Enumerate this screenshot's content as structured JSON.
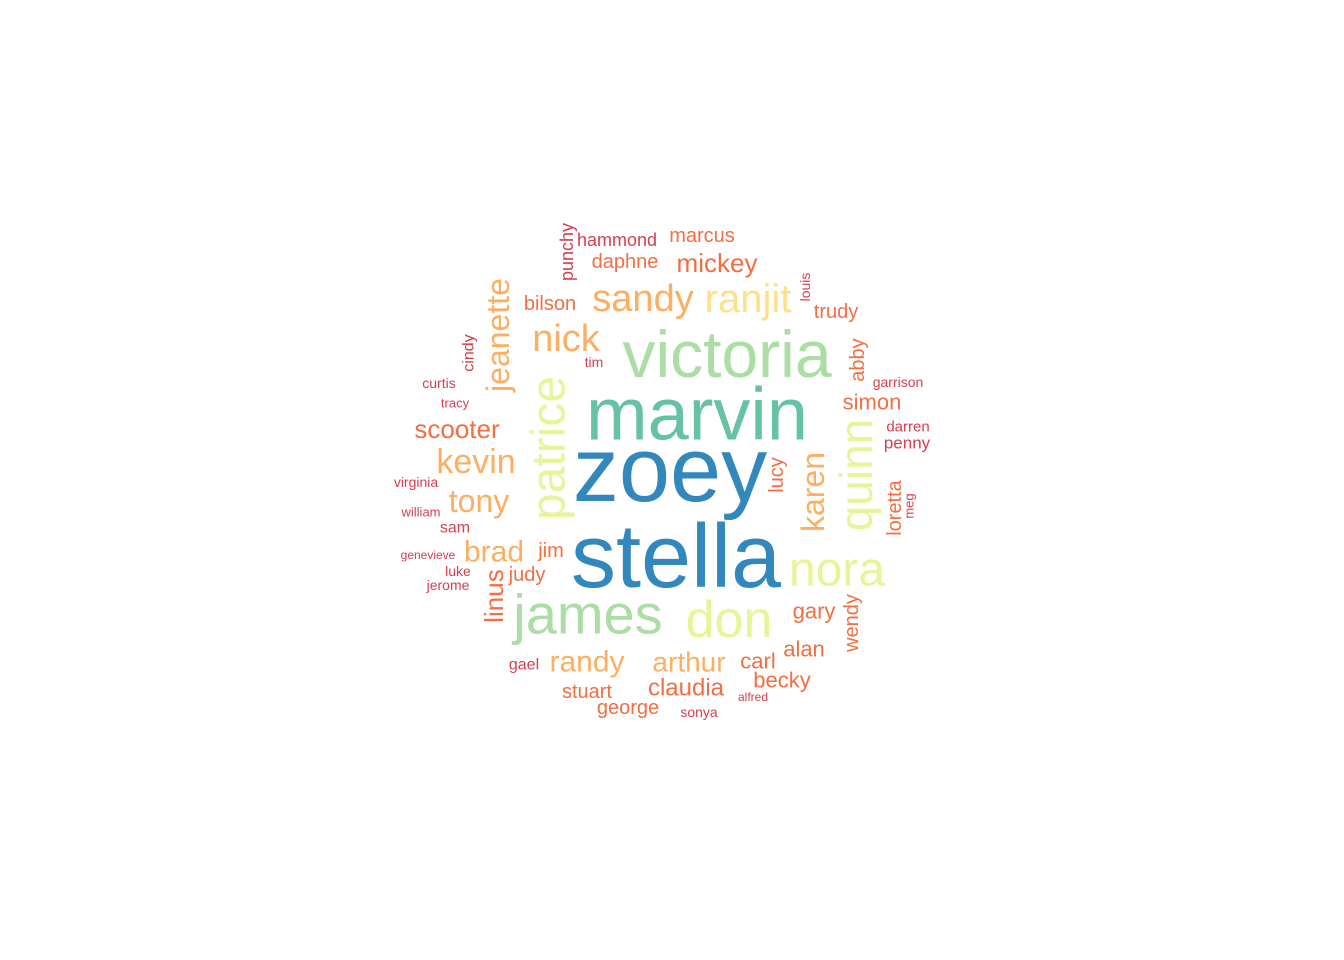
{
  "palette": {
    "blue": "#3288bd",
    "teal": "#66c2a5",
    "green": "#abdda4",
    "yellow_green": "#e6f598",
    "yellow": "#fee08b",
    "light_orange": "#fdae61",
    "orange": "#f46d43",
    "red": "#d53e4f"
  },
  "words": [
    {
      "text": "zoey",
      "color": "#3288bd"
    },
    {
      "text": "stella",
      "color": "#3288bd"
    },
    {
      "text": "marvin",
      "color": "#66c2a5"
    },
    {
      "text": "victoria",
      "color": "#abdda4"
    },
    {
      "text": "james",
      "color": "#abdda4"
    },
    {
      "text": "patrice",
      "color": "#e6f598"
    },
    {
      "text": "quinn",
      "color": "#e6f598"
    },
    {
      "text": "nora",
      "color": "#e6f598"
    },
    {
      "text": "don",
      "color": "#e6f598"
    },
    {
      "text": "ranjit",
      "color": "#fee08b"
    },
    {
      "text": "sandy",
      "color": "#fdae61"
    },
    {
      "text": "nick",
      "color": "#fdae61"
    },
    {
      "text": "jeanette",
      "color": "#fdae61"
    },
    {
      "text": "kevin",
      "color": "#fdae61"
    },
    {
      "text": "karen",
      "color": "#fdae61"
    },
    {
      "text": "tony",
      "color": "#fdae61"
    },
    {
      "text": "brad",
      "color": "#fdae61"
    },
    {
      "text": "randy",
      "color": "#fdae61"
    },
    {
      "text": "arthur",
      "color": "#fdae61"
    },
    {
      "text": "mickey",
      "color": "#f46d43"
    },
    {
      "text": "scooter",
      "color": "#f46d43"
    },
    {
      "text": "linus",
      "color": "#f46d43"
    },
    {
      "text": "claudia",
      "color": "#f46d43"
    },
    {
      "text": "daphne",
      "color": "#f46d43"
    },
    {
      "text": "marcus",
      "color": "#f46d43"
    },
    {
      "text": "bilson",
      "color": "#f46d43"
    },
    {
      "text": "trudy",
      "color": "#f46d43"
    },
    {
      "text": "abby",
      "color": "#f46d43"
    },
    {
      "text": "simon",
      "color": "#f46d43"
    },
    {
      "text": "lucy",
      "color": "#f46d43"
    },
    {
      "text": "loretta",
      "color": "#f46d43"
    },
    {
      "text": "jim",
      "color": "#f46d43"
    },
    {
      "text": "judy",
      "color": "#f46d43"
    },
    {
      "text": "gary",
      "color": "#f46d43"
    },
    {
      "text": "wendy",
      "color": "#f46d43"
    },
    {
      "text": "alan",
      "color": "#f46d43"
    },
    {
      "text": "carl",
      "color": "#f46d43"
    },
    {
      "text": "becky",
      "color": "#f46d43"
    },
    {
      "text": "stuart",
      "color": "#f46d43"
    },
    {
      "text": "george",
      "color": "#f46d43"
    },
    {
      "text": "hammond",
      "color": "#d53e4f"
    },
    {
      "text": "punchy",
      "color": "#d53e4f"
    },
    {
      "text": "louis",
      "color": "#d53e4f"
    },
    {
      "text": "cindy",
      "color": "#d53e4f"
    },
    {
      "text": "tim",
      "color": "#d53e4f"
    },
    {
      "text": "curtis",
      "color": "#d53e4f"
    },
    {
      "text": "tracy",
      "color": "#d53e4f"
    },
    {
      "text": "garrison",
      "color": "#d53e4f"
    },
    {
      "text": "darren",
      "color": "#d53e4f"
    },
    {
      "text": "penny",
      "color": "#d53e4f"
    },
    {
      "text": "meg",
      "color": "#d53e4f"
    },
    {
      "text": "virginia",
      "color": "#d53e4f"
    },
    {
      "text": "william",
      "color": "#d53e4f"
    },
    {
      "text": "sam",
      "color": "#d53e4f"
    },
    {
      "text": "genevieve",
      "color": "#d53e4f"
    },
    {
      "text": "luke",
      "color": "#d53e4f"
    },
    {
      "text": "jerome",
      "color": "#d53e4f"
    },
    {
      "text": "gael",
      "color": "#d53e4f"
    },
    {
      "text": "sonya",
      "color": "#d53e4f"
    },
    {
      "text": "alfred",
      "color": "#d53e4f"
    }
  ]
}
